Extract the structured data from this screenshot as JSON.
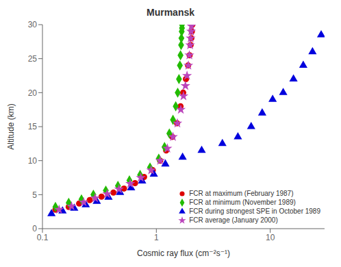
{
  "chart_data": {
    "type": "scatter",
    "title": "Murmansk",
    "xlabel": "Cosmic ray flux (cm⁻²s⁻¹)",
    "ylabel": "Altitude (km)",
    "log": "x",
    "xlim": [
      0.1,
      30
    ],
    "xticks": [
      0.1,
      1,
      10
    ],
    "ylim": [
      0,
      30
    ],
    "yticks": [
      0,
      5,
      10,
      15,
      20,
      25,
      30
    ],
    "grid": false,
    "legend": "lower right",
    "series": [
      {
        "name": "FCR at maximum (February 1987)",
        "color": "#dd0000",
        "marker": "circle",
        "x": [
          0.13,
          0.17,
          0.21,
          0.26,
          0.33,
          0.42,
          0.52,
          0.65,
          0.78,
          0.93,
          1.08,
          1.22,
          1.38,
          1.52,
          1.63,
          1.72,
          1.82,
          1.9,
          1.96,
          2.0,
          2.03,
          2.05,
          2.07
        ],
        "values": [
          2.8,
          3.2,
          3.7,
          4.2,
          4.7,
          5.3,
          5.9,
          6.7,
          7.6,
          8.6,
          10.0,
          11.5,
          13.5,
          15.5,
          18.0,
          20.0,
          22.0,
          24.0,
          25.5,
          27.0,
          28.0,
          29.0,
          30.0
        ]
      },
      {
        "name": "FCR at minimum (November 1989)",
        "color": "#22bb00",
        "marker": "diamond",
        "x": [
          0.13,
          0.17,
          0.22,
          0.28,
          0.36,
          0.46,
          0.58,
          0.72,
          0.88,
          1.05,
          1.18,
          1.3,
          1.4,
          1.48,
          1.54,
          1.58,
          1.61,
          1.63,
          1.65,
          1.66,
          1.67,
          1.68,
          1.68
        ],
        "values": [
          3.2,
          3.8,
          4.3,
          5.0,
          5.6,
          6.3,
          7.1,
          7.9,
          9.0,
          10.3,
          12.0,
          14.0,
          16.0,
          18.0,
          20.0,
          22.0,
          24.0,
          25.5,
          27.0,
          28.0,
          29.0,
          29.5,
          30.0
        ]
      },
      {
        "name": "FCR during strongest SPE in October 1989",
        "color": "#0000dd",
        "marker": "triangle",
        "x": [
          0.12,
          0.15,
          0.19,
          0.24,
          0.3,
          0.38,
          0.48,
          0.6,
          0.75,
          0.95,
          1.2,
          1.7,
          2.5,
          3.8,
          5.2,
          6.8,
          8.5,
          10.5,
          13.0,
          16.0,
          19.5,
          23.5,
          28.0
        ],
        "values": [
          2.2,
          2.6,
          3.0,
          3.5,
          4.0,
          4.6,
          5.3,
          6.0,
          7.0,
          8.0,
          9.5,
          10.5,
          11.5,
          12.5,
          13.5,
          15.0,
          17.0,
          19.0,
          20.0,
          22.0,
          24.0,
          26.0,
          28.5
        ]
      },
      {
        "name": "FCR average (January 2000)",
        "color": "#bb44bb",
        "marker": "star",
        "x": [
          0.14,
          0.18,
          0.23,
          0.29,
          0.37,
          0.47,
          0.59,
          0.73,
          0.9,
          1.08,
          1.25,
          1.4,
          1.53,
          1.64,
          1.73,
          1.8,
          1.86,
          1.91,
          1.95,
          1.98,
          2.0,
          2.02,
          2.03
        ],
        "values": [
          2.8,
          3.3,
          3.9,
          4.5,
          5.1,
          5.8,
          6.6,
          7.5,
          8.6,
          10.0,
          11.8,
          13.5,
          15.5,
          17.5,
          19.5,
          21.0,
          22.5,
          24.0,
          25.5,
          27.0,
          28.0,
          29.0,
          29.8
        ]
      }
    ]
  }
}
